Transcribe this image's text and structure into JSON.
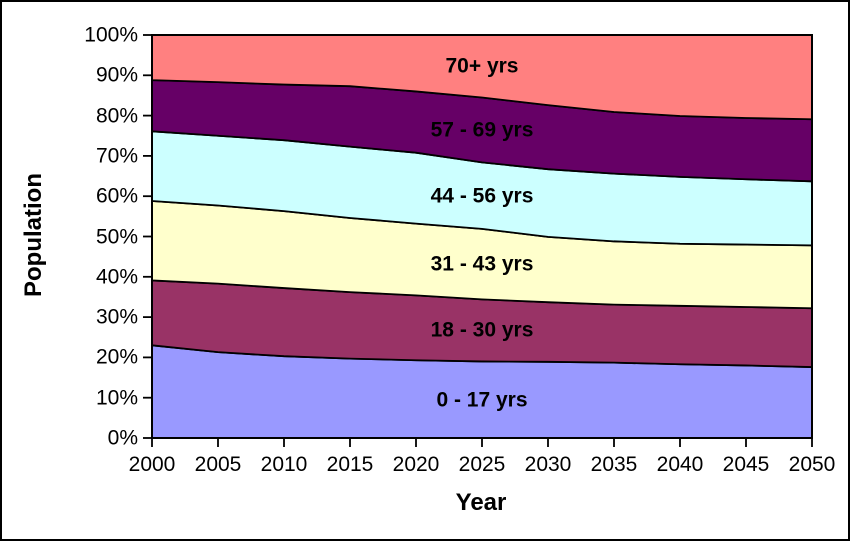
{
  "chart_data": {
    "type": "area",
    "stacked": true,
    "normalized_percent": true,
    "title": "",
    "xlabel": "Year",
    "ylabel": "Population",
    "xlim": [
      2000,
      2050
    ],
    "ylim": [
      0,
      100
    ],
    "grid": false,
    "legend_position": "labels-inside-plot",
    "x": [
      2000,
      2005,
      2010,
      2015,
      2020,
      2025,
      2030,
      2035,
      2040,
      2045,
      2050
    ],
    "x_tick_labels": [
      "2000",
      "2005",
      "2010",
      "2015",
      "2020",
      "2025",
      "2030",
      "2035",
      "2040",
      "2045",
      "2050"
    ],
    "y_tick_labels": [
      "0%",
      "10%",
      "20%",
      "30%",
      "40%",
      "50%",
      "60%",
      "70%",
      "80%",
      "90%",
      "100%"
    ],
    "outline_color": "#000000",
    "series": [
      {
        "name": "0 - 17 yrs",
        "color": "#9999FF",
        "values": [
          23.0,
          21.3,
          20.3,
          19.7,
          19.3,
          19.0,
          18.9,
          18.7,
          18.3,
          18.0,
          17.6
        ]
      },
      {
        "name": "18 - 30 yrs",
        "color": "#993366",
        "values": [
          16.1,
          17.0,
          16.9,
          16.5,
          16.1,
          15.4,
          14.8,
          14.4,
          14.5,
          14.5,
          14.6
        ]
      },
      {
        "name": "31 - 43 yrs",
        "color": "#FFFFCC",
        "values": [
          19.7,
          19.4,
          19.1,
          18.4,
          17.8,
          17.5,
          16.2,
          15.7,
          15.4,
          15.5,
          15.6
        ]
      },
      {
        "name": "44 - 56 yrs",
        "color": "#CCFFFF",
        "values": [
          17.3,
          17.3,
          17.6,
          17.7,
          17.6,
          16.5,
          16.8,
          16.8,
          16.6,
          16.2,
          15.9
        ]
      },
      {
        "name": "57 - 69 yrs",
        "color": "#660066",
        "values": [
          12.7,
          13.3,
          13.8,
          15.0,
          15.2,
          16.1,
          15.9,
          15.3,
          15.1,
          15.2,
          15.4
        ]
      },
      {
        "name": "70+ yrs",
        "color": "#FF8080",
        "values": [
          11.2,
          11.7,
          12.3,
          12.7,
          14.0,
          15.5,
          17.4,
          19.1,
          20.1,
          20.6,
          20.9
        ]
      }
    ]
  }
}
